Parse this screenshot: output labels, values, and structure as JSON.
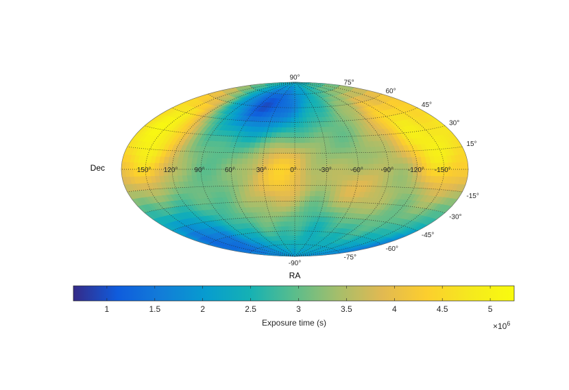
{
  "chart_data": {
    "type": "heatmap",
    "projection": "hammer-aitoff",
    "title": "",
    "xlabel": "RA",
    "ylabel": "Dec",
    "ra_tick_labels": [
      "150°",
      "120°",
      "90°",
      "60°",
      "30°",
      "0°",
      "-30°",
      "-60°",
      "-90°",
      "-120°",
      "-150°"
    ],
    "ra_tick_values": [
      150,
      120,
      90,
      60,
      30,
      0,
      -30,
      -60,
      -90,
      -120,
      -150
    ],
    "dec_tick_labels": [
      "90°",
      "75°",
      "60°",
      "45°",
      "30°",
      "15°",
      "-15°",
      "-30°",
      "-45°",
      "-60°",
      "-75°",
      "-90°"
    ],
    "dec_tick_values": [
      90,
      75,
      60,
      45,
      30,
      15,
      -15,
      -30,
      -45,
      -60,
      -75,
      -90
    ],
    "grid": true,
    "colormap": "parula",
    "colorbar": {
      "label": "Exposure time (s)",
      "multiplier_base": "×10",
      "multiplier_exponent": "6",
      "range": [
        0.65,
        5.25
      ],
      "tick_values": [
        1,
        1.5,
        2,
        2.5,
        3,
        3.5,
        4,
        4.5,
        5
      ],
      "tick_labels": [
        "1",
        "1.5",
        "2",
        "2.5",
        "3",
        "3.5",
        "4",
        "4.5",
        "5"
      ],
      "placement": "bottom"
    },
    "features": [
      {
        "ra": 55,
        "dec": 65,
        "value": 1.3
      },
      {
        "ra": 20,
        "dec": 45,
        "value": 2.4
      },
      {
        "ra": 150,
        "dec": -65,
        "value": 1.3
      },
      {
        "ra": -45,
        "dec": -50,
        "value": 2.2
      },
      {
        "ra": -150,
        "dec": 10,
        "value": 4.6
      },
      {
        "ra": 150,
        "dec": 10,
        "value": 4.4
      },
      {
        "ra": 150,
        "dec": 45,
        "value": 4.5
      },
      {
        "ra": -120,
        "dec": 40,
        "value": 4.3
      },
      {
        "ra": 10,
        "dec": 10,
        "value": 3.9
      },
      {
        "ra": -60,
        "dec": -25,
        "value": 4.2
      },
      {
        "ra": 20,
        "dec": -15,
        "value": 3.8
      }
    ]
  }
}
